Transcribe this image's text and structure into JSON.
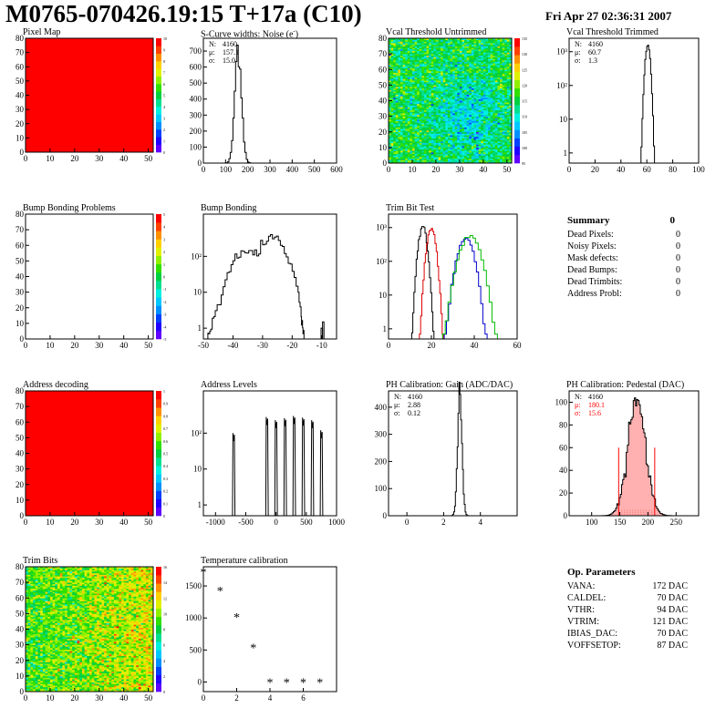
{
  "header": {
    "title": "M0765-070426.19:15 T+17a (C10)",
    "date": "Fri Apr 27 02:36:31 2007"
  },
  "summary": {
    "title": "Summary",
    "total": "0",
    "rows": [
      {
        "label": "Dead Pixels:",
        "value": "0"
      },
      {
        "label": "Noisy Pixels:",
        "value": "0"
      },
      {
        "label": "Mask defects:",
        "value": "0"
      },
      {
        "label": "Dead Bumps:",
        "value": "0"
      },
      {
        "label": "Dead Trimbits:",
        "value": "0"
      },
      {
        "label": "Address Probl:",
        "value": "0"
      }
    ]
  },
  "op_parameters": {
    "title": "Op. Parameters",
    "rows": [
      {
        "label": "VANA:",
        "value": "172 DAC"
      },
      {
        "label": "CALDEL:",
        "value": "70 DAC"
      },
      {
        "label": "VTHR:",
        "value": "94 DAC"
      },
      {
        "label": "VTRIM:",
        "value": "121 DAC"
      },
      {
        "label": "IBIAS_DAC:",
        "value": "70 DAC"
      },
      {
        "label": "VOFFSETOP:",
        "value": "87 DAC"
      }
    ]
  },
  "colors": {
    "red_map": "#ff0000",
    "hist_line": "#000000",
    "trim_red": "#dd0000",
    "trim_blue": "#0000cc",
    "trim_green": "#00bb00",
    "pedestal_fill": "#ffb0b0",
    "pedestal_stats": "#ff0000"
  },
  "chart_data": [
    {
      "id": "pixel-map",
      "type": "heatmap",
      "title": "Pixel Map",
      "fill": "uniform",
      "fill_color": "#ff0000",
      "xlim": [
        0,
        52
      ],
      "ylim": [
        0,
        80
      ],
      "x_ticks": [
        "0",
        "10",
        "20",
        "30",
        "40",
        "50"
      ],
      "y_ticks": [
        "0",
        "10",
        "20",
        "30",
        "40",
        "50",
        "60",
        "70",
        "80"
      ],
      "palette_ticks": [
        "0",
        "1",
        "2",
        "3",
        "4",
        "5",
        "6",
        "7",
        "8",
        "9",
        "10"
      ]
    },
    {
      "id": "scurve-widths",
      "type": "histogram",
      "title": "S-Curve widths: Noise (e",
      "title_sup": "-",
      "title_end": ")",
      "xlim": [
        0,
        600
      ],
      "ylim": [
        0,
        780
      ],
      "x_ticks": [
        "0",
        "100",
        "200",
        "300",
        "400",
        "500",
        "600"
      ],
      "y_ticks": [
        "0",
        "100",
        "200",
        "300",
        "400",
        "500",
        "600",
        "700"
      ],
      "peaks": [
        {
          "mean": 157,
          "sigma": 15,
          "height": 735
        }
      ],
      "stats": [
        {
          "label": "N:",
          "value": "4160"
        },
        {
          "label": "μ:",
          "value": "157.1"
        },
        {
          "label": "σ:",
          "value": "15.0"
        }
      ]
    },
    {
      "id": "vcal-untrimmed",
      "type": "heatmap",
      "title": "Vcal Threshold Untrimmed",
      "fill": "noise_mid",
      "xlim": [
        0,
        52
      ],
      "ylim": [
        0,
        80
      ],
      "x_ticks": [
        "0",
        "10",
        "20",
        "30",
        "40",
        "50"
      ],
      "y_ticks": [
        "0",
        "10",
        "20",
        "30",
        "40",
        "50",
        "60",
        "70",
        "80"
      ],
      "palette_ticks": [
        "95",
        "100",
        "105",
        "110",
        "115",
        "120",
        "125",
        "130",
        "135"
      ]
    },
    {
      "id": "vcal-trimmed",
      "type": "histogram",
      "title": "Vcal Threshold Trimmed",
      "log": true,
      "xlim": [
        0,
        100
      ],
      "ylim": [
        0.5,
        2500
      ],
      "x_ticks": [
        "0",
        "20",
        "40",
        "60",
        "80",
        "100"
      ],
      "y_ticks": [
        "1",
        "10",
        "10²",
        "10³"
      ],
      "peaks": [
        {
          "mean": 60.7,
          "sigma": 1.3,
          "height": 1600
        }
      ],
      "stats": [
        {
          "label": "N:",
          "value": "4160"
        },
        {
          "label": "μ:",
          "value": "60.7"
        },
        {
          "label": "σ:",
          "value": " 1.3"
        }
      ]
    },
    {
      "id": "bump-bonding-problems",
      "type": "heatmap",
      "title": "Bump Bonding Problems",
      "fill": "empty",
      "xlim": [
        0,
        52
      ],
      "ylim": [
        0,
        80
      ],
      "x_ticks": [
        "0",
        "10",
        "20",
        "30",
        "40",
        "50"
      ],
      "y_ticks": [
        "0",
        "10",
        "20",
        "30",
        "40",
        "50",
        "60",
        "70",
        "80"
      ],
      "palette_ticks": [
        "-5",
        "-4",
        "-3",
        "-2",
        "-1",
        "0",
        "1",
        "2",
        "3",
        "4",
        "5"
      ]
    },
    {
      "id": "bump-bonding",
      "type": "histogram",
      "title": "Bump Bonding",
      "log": true,
      "xlim": [
        -50,
        -5
      ],
      "ylim": [
        0.5,
        1500
      ],
      "x_ticks": [
        "-50",
        "-40",
        "-30",
        "-20",
        "-10"
      ],
      "y_ticks": [
        "1",
        "10",
        "10²"
      ],
      "shape": [
        [
          -48.5,
          0.7
        ],
        [
          -47.5,
          1
        ],
        [
          -46,
          3
        ],
        [
          -44,
          8
        ],
        [
          -42,
          30
        ],
        [
          -40,
          80
        ],
        [
          -38,
          110
        ],
        [
          -36,
          130
        ],
        [
          -34,
          120
        ],
        [
          -32,
          150
        ],
        [
          -30,
          200
        ],
        [
          -28,
          300
        ],
        [
          -26,
          350
        ],
        [
          -24,
          200
        ],
        [
          -22,
          100
        ],
        [
          -20,
          40
        ],
        [
          -18,
          10
        ],
        [
          -17,
          2
        ],
        [
          -16.5,
          1
        ],
        [
          -16,
          0.7
        ]
      ],
      "outliers": [
        [
          -10,
          1
        ],
        [
          -9.5,
          1.5
        ]
      ]
    },
    {
      "id": "trim-bit-test",
      "type": "histogram",
      "title": "Trim Bit Test",
      "log": true,
      "xlim": [
        0,
        60
      ],
      "ylim": [
        0.5,
        2500
      ],
      "x_ticks": [
        "0",
        "20",
        "40",
        "60"
      ],
      "y_ticks": [
        "1",
        "10",
        "10²",
        "10³"
      ],
      "peaks": [
        {
          "mean": 16,
          "sigma": 1.3,
          "height": 1100,
          "color": "#000000"
        },
        {
          "mean": 20,
          "sigma": 1.4,
          "height": 900,
          "color": "#dd0000"
        },
        {
          "mean": 36,
          "sigma": 2.5,
          "height": 500,
          "color": "#0000cc"
        },
        {
          "mean": 38,
          "sigma": 3.2,
          "height": 550,
          "color": "#00bb00"
        }
      ]
    },
    {
      "id": "address-decoding",
      "type": "heatmap",
      "title": "Address decoding",
      "fill": "uniform",
      "fill_color": "#ff0000",
      "xlim": [
        0,
        52
      ],
      "ylim": [
        0,
        80
      ],
      "x_ticks": [
        "0",
        "10",
        "20",
        "30",
        "40",
        "50"
      ],
      "y_ticks": [
        "0",
        "10",
        "20",
        "30",
        "40",
        "50",
        "60",
        "70",
        "80"
      ],
      "palette_ticks": [
        "0",
        "0.1",
        "0.2",
        "0.3",
        "0.4",
        "0.5",
        "0.6",
        "0.7",
        "0.8",
        "0.9",
        "1"
      ]
    },
    {
      "id": "address-levels",
      "type": "histogram",
      "title": "Address Levels",
      "log": true,
      "xlim": [
        -1200,
        1000
      ],
      "ylim": [
        0.5,
        1500
      ],
      "x_ticks": [
        "-1000",
        "-500",
        "0",
        "500",
        "1000"
      ],
      "y_ticks": [
        "1",
        "10",
        "10²"
      ],
      "spikes": [
        -700,
        -150,
        0,
        150,
        300,
        450,
        600,
        750
      ],
      "spike_heights": [
        100,
        280,
        230,
        260,
        300,
        270,
        230,
        120
      ]
    },
    {
      "id": "ph-gain",
      "type": "histogram",
      "title": "PH Calibration: Gain (ADC/DAC)",
      "xlim": [
        -1,
        6
      ],
      "ylim": [
        0,
        460
      ],
      "x_ticks": [
        "0",
        "2",
        "4"
      ],
      "y_ticks": [
        "0",
        "100",
        "200",
        "300",
        "400"
      ],
      "peaks": [
        {
          "mean": 2.88,
          "sigma": 0.12,
          "height": 440
        }
      ],
      "stats": [
        {
          "label": "N:",
          "value": "4160"
        },
        {
          "label": "μ:",
          "value": "2.88"
        },
        {
          "label": "σ:",
          "value": "0.12"
        }
      ]
    },
    {
      "id": "ph-pedestal",
      "type": "histogram",
      "title": "PH Calibration: Pedestal (DAC)",
      "xlim": [
        60,
        290
      ],
      "ylim": [
        0,
        110
      ],
      "x_ticks": [
        "100",
        "150",
        "200",
        "250"
      ],
      "y_ticks": [
        "0",
        "20",
        "40",
        "60",
        "80",
        "100"
      ],
      "peaks": [
        {
          "mean": 180.1,
          "sigma": 15.6,
          "height": 100
        }
      ],
      "limits": [
        148,
        212
      ],
      "stats": [
        {
          "label": "N:",
          "value": "4160"
        },
        {
          "label": "μ:",
          "value": "180.1"
        },
        {
          "label": "σ:",
          "value": "15.6"
        }
      ]
    },
    {
      "id": "trim-bits",
      "type": "heatmap",
      "title": "Trim Bits",
      "fill": "noise_mid",
      "xlim": [
        0,
        52
      ],
      "ylim": [
        0,
        80
      ],
      "x_ticks": [
        "0",
        "10",
        "20",
        "30",
        "40",
        "50"
      ],
      "y_ticks": [
        "0",
        "10",
        "20",
        "30",
        "40",
        "50",
        "60",
        "70",
        "80"
      ],
      "palette_ticks": [
        "0",
        "2",
        "4",
        "6",
        "8",
        "10",
        "12",
        "14",
        "16"
      ]
    },
    {
      "id": "temperature-calibration",
      "type": "scatter",
      "title": "Temperature calibration",
      "xlim": [
        0,
        8
      ],
      "ylim": [
        -150,
        1800
      ],
      "x_ticks": [
        "0",
        "2",
        "4",
        "6"
      ],
      "y_ticks": [
        "0",
        "500",
        "1000",
        "1500"
      ],
      "x": [
        0,
        1,
        2,
        3,
        4,
        5,
        6,
        7
      ],
      "y": [
        1720,
        1430,
        1020,
        540,
        0,
        0,
        0,
        0
      ],
      "marker": "*"
    }
  ]
}
